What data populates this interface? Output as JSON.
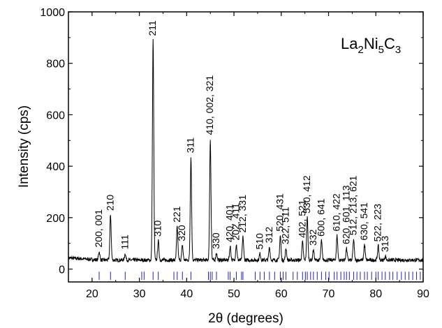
{
  "chart_data": {
    "type": "line",
    "xlabel": "2θ (degrees)",
    "ylabel": "Intensity (cps)",
    "xlim": [
      15,
      90
    ],
    "ylim": [
      -50,
      1000
    ],
    "xticks": [
      20,
      30,
      40,
      50,
      60,
      70,
      80,
      90
    ],
    "yticks": [
      0,
      200,
      400,
      600,
      800,
      1000
    ],
    "compound_label": {
      "main": [
        "La",
        "Ni",
        "C"
      ],
      "subs": [
        "2",
        "5",
        "3"
      ]
    },
    "grid": false,
    "baseline": 35,
    "colors": {
      "pattern": "#000000",
      "reflection_ticks": "#1f1fd0"
    },
    "peaks": [
      {
        "x": 21.5,
        "y": 68,
        "label": "200, 001"
      },
      {
        "x": 23.9,
        "y": 210,
        "label": "210"
      },
      {
        "x": 27.0,
        "y": 60,
        "label": "111"
      },
      {
        "x": 32.9,
        "y": 890,
        "label": "211"
      },
      {
        "x": 34.0,
        "y": 110,
        "label": "310"
      },
      {
        "x": 38.0,
        "y": 165,
        "label": "221"
      },
      {
        "x": 39.1,
        "y": 92,
        "label": "320"
      },
      {
        "x": 40.9,
        "y": 435,
        "label": "311"
      },
      {
        "x": 45.0,
        "y": 505,
        "label": "410, 002, 321"
      },
      {
        "x": 46.3,
        "y": 62,
        "label": "330"
      },
      {
        "x": 49.2,
        "y": 88,
        "label": "420, 401"
      },
      {
        "x": 50.5,
        "y": 95,
        "label": "202, 411"
      },
      {
        "x": 51.9,
        "y": 125,
        "label": "212, 331"
      },
      {
        "x": 55.5,
        "y": 60,
        "label": "510"
      },
      {
        "x": 57.5,
        "y": 85,
        "label": "312"
      },
      {
        "x": 59.8,
        "y": 130,
        "label": "520, 431"
      },
      {
        "x": 61.0,
        "y": 80,
        "label": "322, 511"
      },
      {
        "x": 64.5,
        "y": 105,
        "label": "402, 521"
      },
      {
        "x": 65.5,
        "y": 200,
        "label": "530, 412"
      },
      {
        "x": 66.8,
        "y": 75,
        "label": "332"
      },
      {
        "x": 68.5,
        "y": 110,
        "label": "600, 641"
      },
      {
        "x": 71.8,
        "y": 130,
        "label": "610, 422"
      },
      {
        "x": 73.8,
        "y": 80,
        "label": "620, 601, 113"
      },
      {
        "x": 75.3,
        "y": 115,
        "label": "512, 213, 621"
      },
      {
        "x": 77.6,
        "y": 95,
        "label": "630, 541"
      },
      {
        "x": 80.5,
        "y": 90,
        "label": "522, 223"
      },
      {
        "x": 82.0,
        "y": 50,
        "label": "313"
      }
    ],
    "reflection_positions": [
      21.5,
      23.9,
      27.0,
      30.5,
      31.0,
      32.9,
      34.0,
      37.3,
      38.0,
      39.1,
      40.9,
      44.6,
      45.0,
      45.4,
      46.3,
      48.8,
      49.2,
      50.5,
      51.6,
      51.9,
      54.5,
      55.5,
      56.4,
      57.5,
      58.6,
      59.8,
      60.4,
      61.0,
      62.5,
      63.4,
      64.5,
      65.1,
      65.5,
      66.2,
      66.8,
      67.6,
      68.5,
      69.4,
      70.1,
      71.2,
      71.8,
      72.6,
      73.3,
      73.8,
      74.4,
      75.3,
      76.0,
      76.7,
      77.6,
      78.2,
      79.1,
      80.0,
      80.5,
      81.3,
      82.0,
      82.9,
      83.6,
      84.5,
      85.4,
      86.2,
      87.0,
      87.8,
      88.6,
      89.4
    ]
  }
}
